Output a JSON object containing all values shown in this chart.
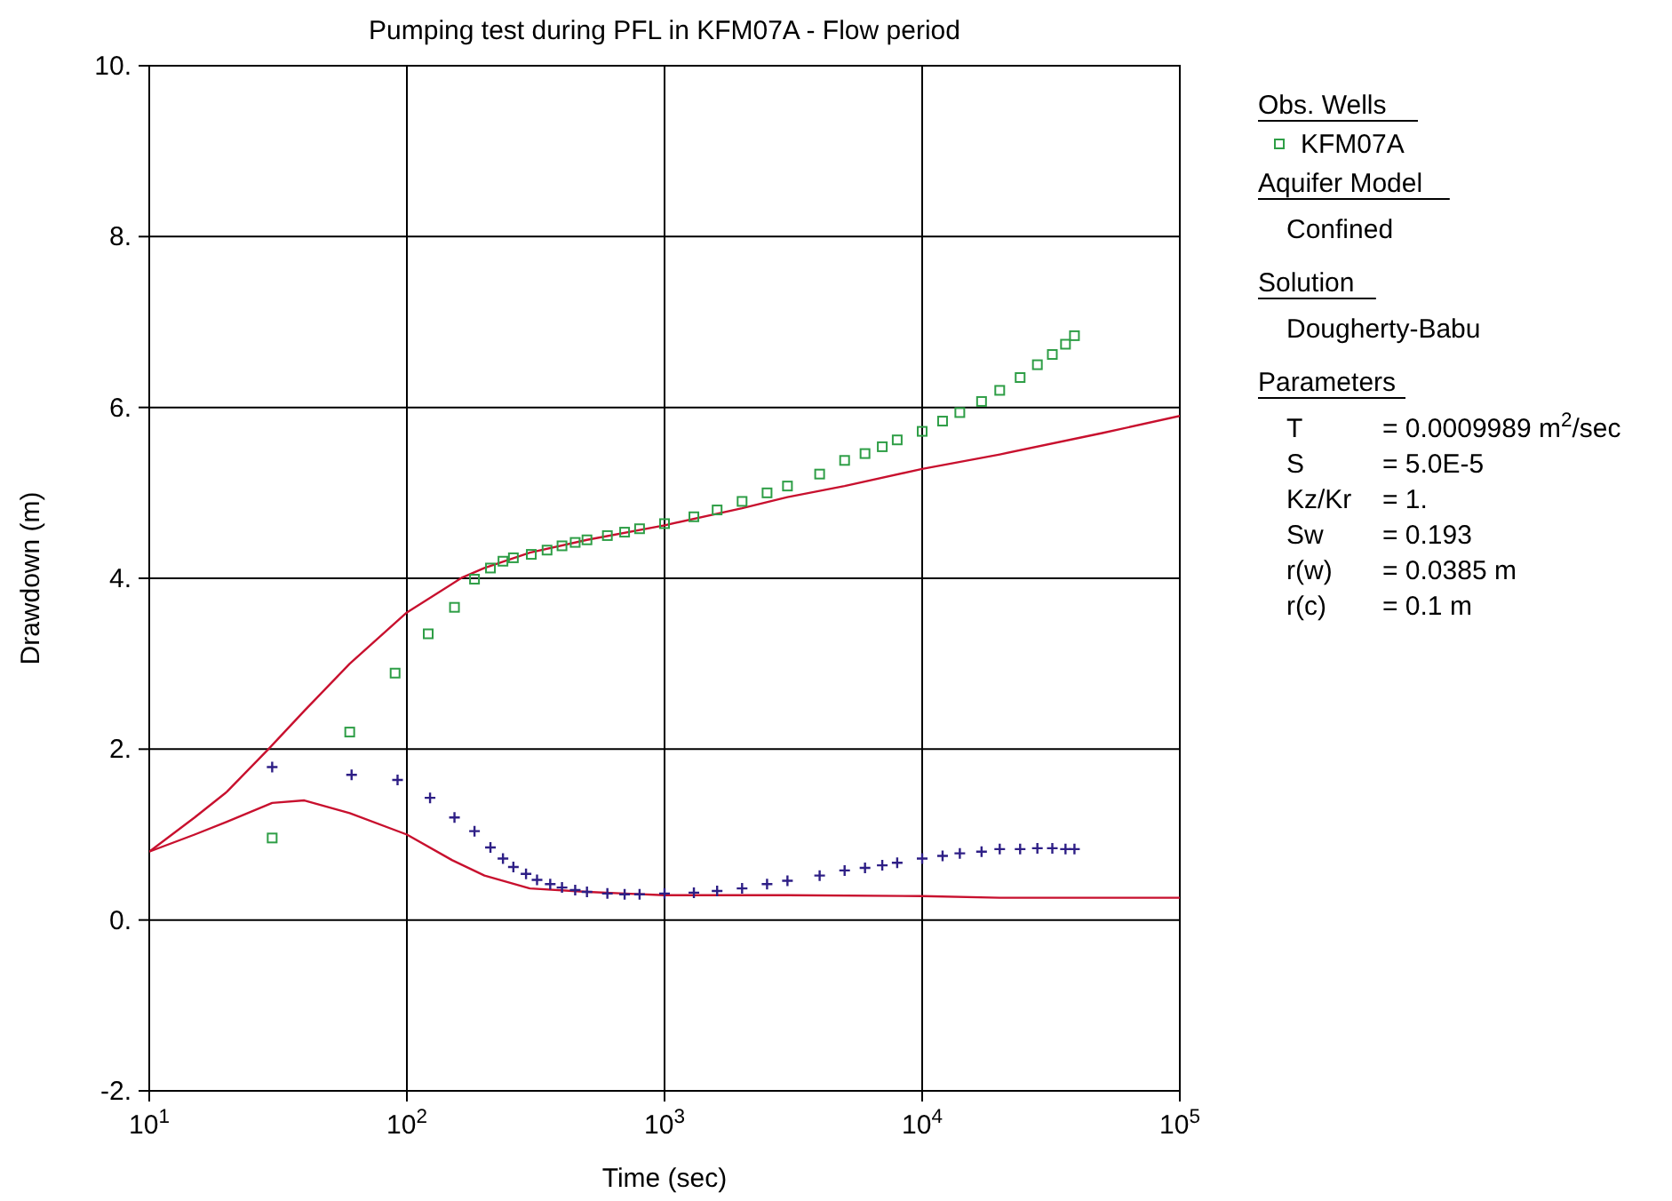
{
  "chart_data": {
    "type": "scatter",
    "title": "Pumping test during PFL in KFM07A - Flow period",
    "xlabel": "Time (sec)",
    "ylabel": "Drawdown (m)",
    "legend_title": "Obs. Wells",
    "log": "x",
    "grid": true,
    "legend": "right",
    "xlim": [
      10,
      100000
    ],
    "xticks": [
      {
        "value": 10,
        "label": "10$^{1}$"
      },
      {
        "value": 100,
        "label": "10$^{2}$"
      },
      {
        "value": 1000,
        "label": "10$^{3}$"
      },
      {
        "value": 10000,
        "label": "10$^{4}$"
      },
      {
        "value": 100000,
        "label": "10$^{5}$"
      }
    ],
    "ylim": [
      -2,
      10
    ],
    "yticks": [
      {
        "value": -2,
        "label": "-2."
      },
      {
        "value": 0,
        "label": "0."
      },
      {
        "value": 2,
        "label": "2."
      },
      {
        "value": 4,
        "label": "4."
      },
      {
        "value": 6,
        "label": "6."
      },
      {
        "value": 8,
        "label": "8."
      },
      {
        "value": 10,
        "label": "10."
      }
    ],
    "series": [
      {
        "name": "KFM07A",
        "marker": "square",
        "color": "#2e9e46",
        "x": [
          30,
          60,
          90,
          121,
          153,
          183,
          211,
          236,
          259,
          304,
          350,
          400,
          450,
          500,
          600,
          700,
          800,
          1000,
          1300,
          1600,
          2000,
          2500,
          3000,
          4000,
          5000,
          6000,
          7000,
          8000,
          10000,
          12000,
          14000,
          17000,
          20000,
          24000,
          28000,
          32000,
          36000,
          39000
        ],
        "values": [
          0.96,
          2.2,
          2.89,
          3.35,
          3.66,
          3.99,
          4.12,
          4.2,
          4.24,
          4.28,
          4.33,
          4.38,
          4.42,
          4.45,
          4.5,
          4.54,
          4.58,
          4.64,
          4.72,
          4.8,
          4.9,
          5.0,
          5.08,
          5.22,
          5.38,
          5.46,
          5.54,
          5.62,
          5.72,
          5.84,
          5.94,
          6.07,
          6.2,
          6.35,
          6.5,
          6.62,
          6.74,
          6.84
        ]
      },
      {
        "marker": "cross",
        "color": "#2e1f86",
        "x": [
          30,
          61,
          92,
          123,
          153,
          183,
          211,
          236,
          259,
          290,
          320,
          360,
          400,
          450,
          500,
          600,
          700,
          800,
          1000,
          1300,
          1600,
          2000,
          2500,
          3000,
          4000,
          5000,
          6000,
          7000,
          8000,
          10000,
          12000,
          14000,
          17000,
          20000,
          24000,
          28000,
          32000,
          36000,
          39000
        ],
        "values": [
          1.79,
          1.7,
          1.64,
          1.43,
          1.2,
          1.04,
          0.85,
          0.72,
          0.62,
          0.54,
          0.47,
          0.42,
          0.38,
          0.35,
          0.33,
          0.31,
          0.3,
          0.3,
          0.31,
          0.32,
          0.34,
          0.37,
          0.42,
          0.46,
          0.52,
          0.58,
          0.61,
          0.64,
          0.67,
          0.72,
          0.75,
          0.78,
          0.8,
          0.83,
          0.83,
          0.84,
          0.84,
          0.83,
          0.83
        ]
      },
      {
        "type": "line",
        "marker": "none",
        "color": "#c8102e",
        "x": [
          10,
          15,
          20,
          29,
          40,
          60,
          100,
          164,
          200,
          300,
          500,
          1000,
          2000,
          3000,
          5000,
          10000,
          20000,
          50000,
          100000
        ],
        "values": [
          0.8,
          1.2,
          1.5,
          2.0,
          2.45,
          3.0,
          3.6,
          4.01,
          4.12,
          4.3,
          4.45,
          4.62,
          4.82,
          4.95,
          5.08,
          5.28,
          5.45,
          5.7,
          5.9
        ]
      },
      {
        "type": "line",
        "marker": "none",
        "color": "#c8102e",
        "x": [
          10,
          15,
          20,
          30,
          40,
          60,
          100,
          150,
          200,
          300,
          500,
          700,
          1000,
          3000,
          10000,
          20000,
          50000,
          100000
        ],
        "values": [
          0.8,
          1.0,
          1.15,
          1.37,
          1.4,
          1.25,
          1.0,
          0.7,
          0.52,
          0.37,
          0.33,
          0.31,
          0.29,
          0.29,
          0.28,
          0.26,
          0.26,
          0.26
        ]
      }
    ],
    "annotations": [
      "Aquifer Model",
      "Confined",
      "Solution",
      "Dougherty-Babu",
      "Parameters",
      "T",
      "= 0.0009989 m$^{2}$/sec",
      "S",
      "= 5.0E-5",
      "Kz/Kr",
      "= 1.",
      "Sw",
      "= 0.193",
      "r(w)",
      "= 0.0385 m",
      "r(c)",
      "= 0.1 m"
    ]
  }
}
